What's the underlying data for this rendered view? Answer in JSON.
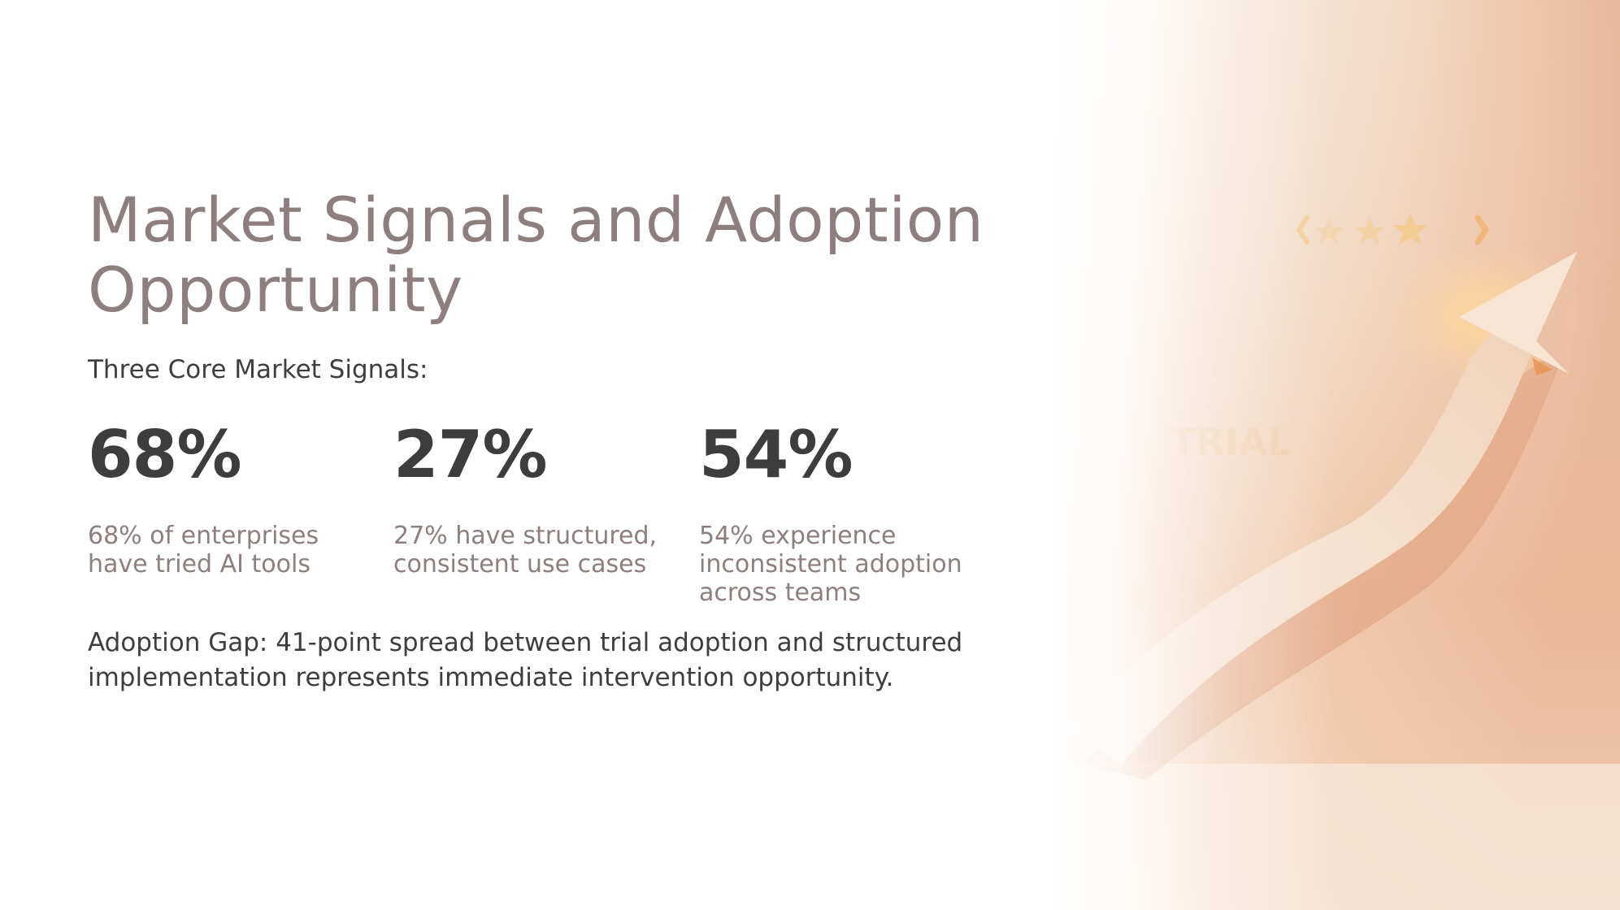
{
  "slide": {
    "title": "Market Signals and Adoption Opportunity",
    "subtitle": "Three Core Market Signals:",
    "stats": [
      {
        "value": "68%",
        "description": "68% of enterprises have tried AI tools"
      },
      {
        "value": "27%",
        "description": "27% have structured, consistent use cases"
      },
      {
        "value": "54%",
        "description": "54% experience inconsistent adoption across teams"
      }
    ],
    "gap_statement": "Adoption Gap: 41-point spread between trial adoption and structured implementation represents immediate intervention opportunity."
  },
  "image": {
    "subject": "rising-arrow-illustration",
    "watermark_text": "TRIAL"
  },
  "colors": {
    "title": "#8e7e7e",
    "body_text": "#3e3e3e",
    "stat_value": "#3d3d3d",
    "stat_description": "#8e7e7e",
    "accent_warm": "#e8a77c"
  }
}
